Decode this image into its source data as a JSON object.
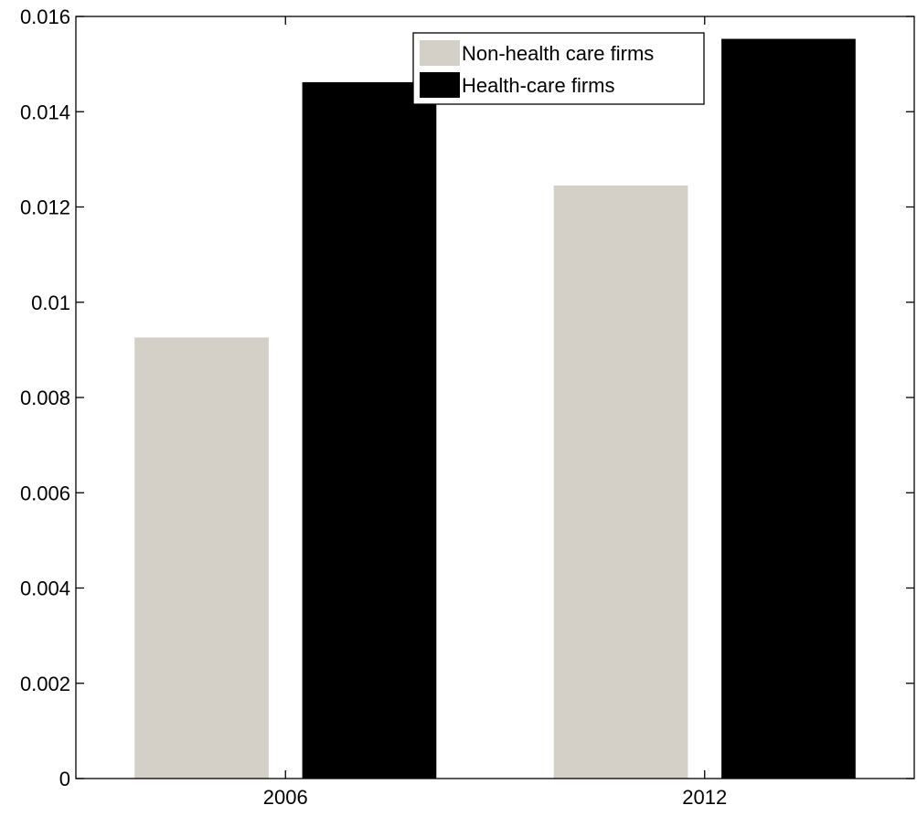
{
  "chart_data": {
    "type": "bar",
    "title": "",
    "xlabel": "",
    "ylabel": "",
    "categories": [
      "2006",
      "2012"
    ],
    "series": [
      {
        "name": "Non-health care firms",
        "color": "#d4d0c8",
        "values": [
          0.00926,
          0.01245
        ]
      },
      {
        "name": "Health-care firms",
        "color": "#000000",
        "values": [
          0.01462,
          0.01553
        ]
      }
    ],
    "ylim": [
      0,
      0.016
    ],
    "yticks": [
      "0",
      "0.002",
      "0.004",
      "0.006",
      "0.008",
      "0.01",
      "0.012",
      "0.014",
      "0.016"
    ],
    "grid": false,
    "legend_position": "top-center"
  }
}
